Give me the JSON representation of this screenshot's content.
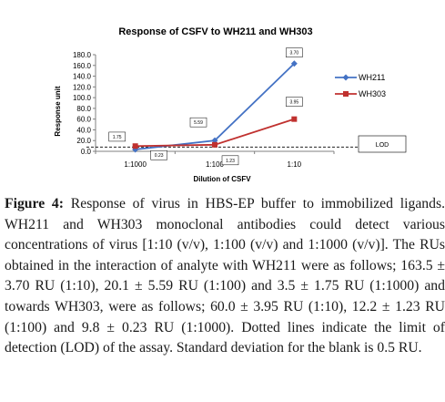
{
  "chart_data": {
    "type": "line",
    "title": "Response of CSFV to WH211 and WH303",
    "xlabel": "Dilution of CSFV",
    "ylabel": "Response unit",
    "categories": [
      "1:1000",
      "1:100",
      "1:10"
    ],
    "ylim": [
      0,
      180
    ],
    "yticks": [
      "0.0",
      "20.0",
      "40.0",
      "60.0",
      "80.0",
      "100.0",
      "120.0",
      "140.0",
      "160.0",
      "180.0"
    ],
    "series": [
      {
        "name": "WH211",
        "values": [
          3.5,
          20.1,
          163.5
        ],
        "error_labels": [
          "1.75",
          "5.59",
          "3.70"
        ],
        "color": "#4472c4",
        "marker": "diamond"
      },
      {
        "name": "WH303",
        "values": [
          9.8,
          12.2,
          60.0
        ],
        "error_labels": [
          "0.23",
          "1.23",
          "3.95"
        ],
        "color": "#c0312f",
        "marker": "square"
      }
    ],
    "lod": {
      "label": "LOD",
      "value": 8.0
    },
    "legend": "right",
    "grid": false
  },
  "caption": {
    "label": "Figure 4:",
    "text": " Response of virus in HBS-EP buffer to immobilized ligands. WH211 and WH303 monoclonal antibodies could detect various concentrations of virus [1:10 (v/v), 1:100 (v/v) and 1:1000 (v/v)]. The RUs obtained in the interaction of analyte with WH211 were as follows; 163.5 ± 3.70 RU (1:10), 20.1 ± 5.59 RU (1:100) and 3.5 ± 1.75 RU (1:1000) and towards WH303, were as follows; 60.0 ± 3.95 RU (1:10), 12.2 ± 1.23 RU (1:100) and 9.8 ± 0.23 RU (1:1000). Dotted lines indicate the limit of detection (LOD) of the assay. Standard deviation for the blank is 0.5 RU."
  },
  "colors": {
    "accent_blue": "#4472c4",
    "accent_red": "#c0312f",
    "axis": "#808080"
  }
}
